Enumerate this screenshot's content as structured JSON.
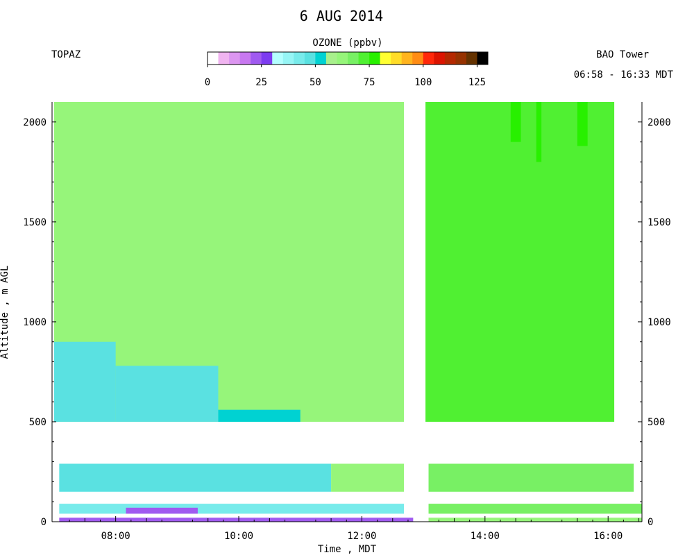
{
  "chart_data": {
    "type": "heatmap",
    "title": "6 AUG 2014",
    "site_left": "TOPAZ",
    "site_right": "BAO Tower",
    "time_range": "06:58 - 16:33 MDT",
    "colorbar": {
      "title": "OZONE (ppbv)",
      "min": 0,
      "max": 130,
      "step": 5,
      "tick_values": [
        0,
        25,
        50,
        75,
        100,
        125
      ],
      "tick_labels": [
        "0",
        "25",
        "50",
        "75",
        "100",
        "125"
      ],
      "colors": [
        "#ffffff",
        "#f0b4f0",
        "#dc96f0",
        "#c878f0",
        "#a05af0",
        "#7d3cf0",
        "#b4ffff",
        "#96f5f5",
        "#78ebeb",
        "#5ae1e1",
        "#00d2d2",
        "#a8f08c",
        "#96f57a",
        "#78f064",
        "#50f032",
        "#28f000",
        "#ffff32",
        "#ffdc28",
        "#ffb41e",
        "#ff8c14",
        "#ff280a",
        "#dc1400",
        "#b42800",
        "#963200",
        "#643200",
        "#000000"
      ]
    },
    "xlabel": "Time , MDT",
    "ylabel": "Altitude , m AGL",
    "xlim": [
      "06:58",
      "16:33"
    ],
    "ylim": [
      0,
      2100
    ],
    "xticks": [
      "08:00",
      "10:00",
      "12:00",
      "14:00",
      "16:00"
    ],
    "yticks": [
      0,
      500,
      1000,
      1500,
      2000
    ],
    "data_gaps": {
      "time": [
        "12:41",
        "13:02"
      ],
      "altitude_m": [
        300,
        500
      ]
    },
    "series": [
      {
        "time_start": "07:00",
        "time_end": "12:41",
        "alt_from": 500,
        "alt_to": 2100,
        "ozone_ppbv": 63
      },
      {
        "time_start": "07:00",
        "time_end": "08:00",
        "alt_from": 500,
        "alt_to": 900,
        "ozone_ppbv": 48
      },
      {
        "time_start": "08:00",
        "time_end": "09:40",
        "alt_from": 500,
        "alt_to": 780,
        "ozone_ppbv": 49
      },
      {
        "time_start": "09:40",
        "time_end": "11:00",
        "alt_from": 500,
        "alt_to": 560,
        "ozone_ppbv": 50
      },
      {
        "time_start": "13:02",
        "time_end": "16:06",
        "alt_from": 500,
        "alt_to": 2100,
        "ozone_ppbv": 70
      },
      {
        "time_start": "14:25",
        "time_end": "14:35",
        "alt_from": 1900,
        "alt_to": 2100,
        "ozone_ppbv": 77
      },
      {
        "time_start": "14:50",
        "time_end": "14:55",
        "alt_from": 1800,
        "alt_to": 2100,
        "ozone_ppbv": 76
      },
      {
        "time_start": "15:30",
        "time_end": "15:40",
        "alt_from": 1880,
        "alt_to": 2100,
        "ozone_ppbv": 76
      },
      {
        "time_start": "07:05",
        "time_end": "11:30",
        "alt_from": 150,
        "alt_to": 290,
        "ozone_ppbv": 45
      },
      {
        "time_start": "11:30",
        "time_end": "12:41",
        "alt_from": 150,
        "alt_to": 290,
        "ozone_ppbv": 60
      },
      {
        "time_start": "13:05",
        "time_end": "16:25",
        "alt_from": 150,
        "alt_to": 290,
        "ozone_ppbv": 68
      },
      {
        "time_start": "07:05",
        "time_end": "12:41",
        "alt_from": 40,
        "alt_to": 90,
        "ozone_ppbv": 40
      },
      {
        "time_start": "13:05",
        "time_end": "16:33",
        "alt_from": 40,
        "alt_to": 90,
        "ozone_ppbv": 65
      },
      {
        "time_start": "08:10",
        "time_end": "09:20",
        "alt_from": 40,
        "alt_to": 70,
        "ozone_ppbv": 20
      },
      {
        "time_start": "07:05",
        "time_end": "12:50",
        "alt_from": 0,
        "alt_to": 20,
        "ozone_ppbv": 22
      },
      {
        "time_start": "13:05",
        "time_end": "16:33",
        "alt_from": 0,
        "alt_to": 20,
        "ozone_ppbv": 62
      }
    ]
  }
}
